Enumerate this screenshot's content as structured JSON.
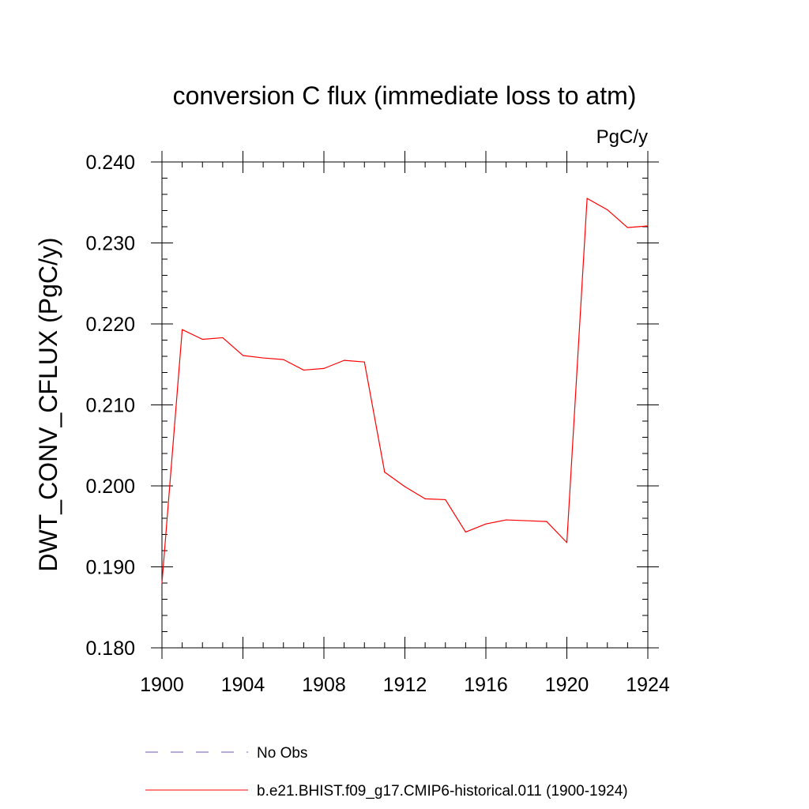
{
  "chart_data": {
    "type": "line",
    "title": "conversion C flux (immediate loss to atm)",
    "units_label": "PgC/y",
    "ylabel": "DWT_CONV_CFLUX  (PgC/y)",
    "xlabel": "",
    "xlim": [
      1900,
      1924
    ],
    "ylim": [
      0.18,
      0.24
    ],
    "x_ticks": [
      1900,
      1904,
      1908,
      1912,
      1916,
      1920,
      1924
    ],
    "x_tick_labels": [
      "1900",
      "1904",
      "1908",
      "1912",
      "1916",
      "1920",
      "1924"
    ],
    "y_ticks": [
      0.18,
      0.19,
      0.2,
      0.21,
      0.22,
      0.23,
      0.24
    ],
    "y_tick_labels": [
      "0.180",
      "0.190",
      "0.200",
      "0.210",
      "0.220",
      "0.230",
      "0.240"
    ],
    "grid": false,
    "legend_position": "bottom",
    "series": [
      {
        "name": "b.e21.BHIST.f09_g17.CMIP6-historical.011 (1900-1924)",
        "color": "#ff0000",
        "style": "solid",
        "x": [
          1900,
          1901,
          1902,
          1903,
          1904,
          1905,
          1906,
          1907,
          1908,
          1909,
          1910,
          1911,
          1912,
          1913,
          1914,
          1915,
          1916,
          1917,
          1918,
          1919,
          1920,
          1921,
          1922,
          1923,
          1924
        ],
        "y": [
          0.188,
          0.2193,
          0.2181,
          0.2183,
          0.2161,
          0.2158,
          0.2156,
          0.2143,
          0.2145,
          0.2155,
          0.2153,
          0.2017,
          0.1999,
          0.1984,
          0.1983,
          0.1943,
          0.1953,
          0.1958,
          0.1957,
          0.1956,
          0.193,
          0.2355,
          0.2341,
          0.2319,
          0.2321
        ]
      }
    ],
    "legend": [
      {
        "label": "No Obs",
        "color": "#6a5acd",
        "style": "dashed"
      },
      {
        "label": "b.e21.BHIST.f09_g17.CMIP6-historical.011 (1900-1924)",
        "color": "#ff0000",
        "style": "solid"
      }
    ]
  }
}
